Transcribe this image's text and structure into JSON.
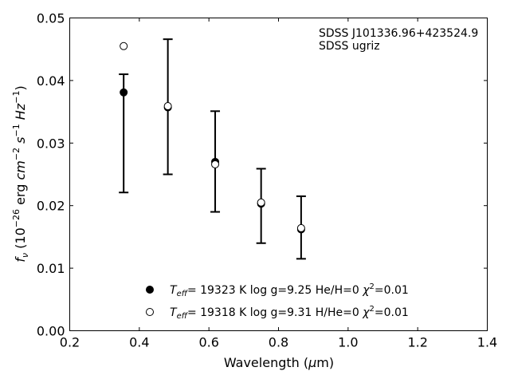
{
  "chart_data": {
    "type": "scatter",
    "title": "",
    "xlabel": "Wavelength (μm)",
    "ylabel": "f_ν (10^-26 erg cm^-2 s^-1 Hz^-1)",
    "xlim": [
      0.2,
      1.4
    ],
    "ylim": [
      0.0,
      0.05
    ],
    "xticks": [
      "0.2",
      "0.4",
      "0.6",
      "0.8",
      "1.0",
      "1.2",
      "1.4"
    ],
    "yticks": [
      "0.00",
      "0.01",
      "0.02",
      "0.03",
      "0.04",
      "0.05"
    ],
    "grid": false,
    "legend_position": "bottom-center",
    "annotations": [
      "SDSS J101336.96+423524.9",
      "SDSS ugriz"
    ],
    "errorbars": {
      "x": [
        0.355,
        0.482,
        0.618,
        0.75,
        0.865
      ],
      "y": [
        0.0381,
        0.0358,
        0.027,
        0.0204,
        0.0163
      ],
      "yerr_low": [
        0.016,
        0.0108,
        0.008,
        0.0064,
        0.0048
      ],
      "yerr_high": [
        0.0029,
        0.0108,
        0.0081,
        0.0055,
        0.0052
      ]
    },
    "series": [
      {
        "name": "Teff= 19323 K  log g=9.25  He/H=0  χ2=0.01",
        "marker": "filled-circle",
        "x": [
          0.355,
          0.482,
          0.618,
          0.75,
          0.865
        ],
        "y": [
          0.0381,
          0.0357,
          0.027,
          0.0203,
          0.0162
        ]
      },
      {
        "name": "Teff= 19318 K  log g=9.31  H/He=0  χ2=0.01",
        "marker": "open-circle",
        "x": [
          0.355,
          0.482,
          0.618,
          0.75,
          0.865
        ],
        "y": [
          0.0455,
          0.0359,
          0.0266,
          0.0205,
          0.0164
        ]
      }
    ]
  },
  "legend": [
    {
      "teff_prefix": "T",
      "teff_sub": "eff",
      "text_a": "= 19323 K  log g=9.25  He/H=0  ",
      "chi": "χ",
      "chi_sup": "2",
      "text_b": "=0.01"
    },
    {
      "teff_prefix": "T",
      "teff_sub": "eff",
      "text_a": "= 19318 K  log g=9.31  H/He=0  ",
      "chi": "χ",
      "chi_sup": "2",
      "text_b": "=0.01"
    }
  ],
  "ylabel_parts": {
    "f": "f",
    "nu": "ν",
    "open": " (10",
    "e1": "−26",
    "erg": " erg ",
    "cm": "cm",
    "e2": "−2",
    "s": " s",
    "e3": "−1",
    "hz": " Hz",
    "e4": "−1",
    "close": ")"
  },
  "xlabel_parts": {
    "text": "Wavelength (",
    "mu": "μ",
    "unit": "m)"
  }
}
